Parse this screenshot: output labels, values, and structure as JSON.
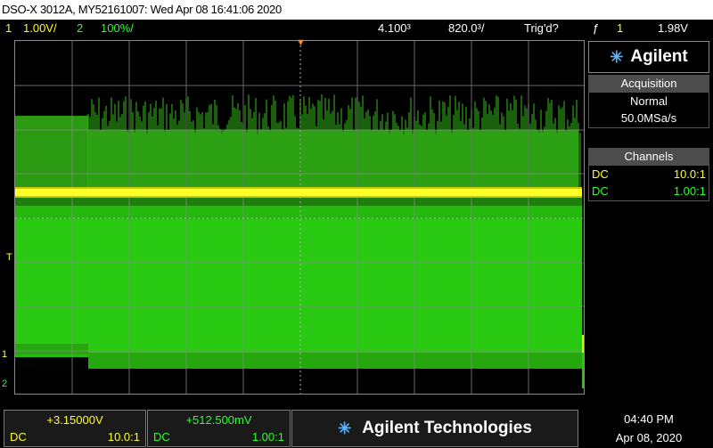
{
  "header": {
    "title": "DSO-X 3012A, MY52161007: Wed Apr 08 16:41:06 2020"
  },
  "status": {
    "ch1_num": "1",
    "ch1_scale": "1.00V/",
    "ch2_num": "2",
    "ch2_scale": "100%/",
    "timebase": "4.100³",
    "delay": "820.0³/",
    "trigger_state": "Trig'd?",
    "trigger_edge": "ƒ",
    "trigger_source": "1",
    "trigger_level": "1.98V"
  },
  "markers": {
    "trigger": "T",
    "ch1": "1",
    "ch2": "2"
  },
  "sidebar": {
    "brand": "Agilent",
    "acquisition_title": "Acquisition",
    "acq_mode": "Normal",
    "acq_rate": "50.0MSa/s",
    "channels_title": "Channels",
    "channels": [
      {
        "coupling": "DC",
        "probe": "10.0:1",
        "color": "#ffff2a"
      },
      {
        "coupling": "DC",
        "probe": "1.00:1",
        "color": "#2dff2d"
      }
    ]
  },
  "bottom": {
    "ch1_offset": "+3.15000V",
    "ch1_coupling": "DC",
    "ch1_probe": "10.0:1",
    "ch2_offset": "+512.500mV",
    "ch2_coupling": "DC",
    "ch2_probe": "1.00:1",
    "brand": "Agilent Technologies",
    "time": "04:40 PM",
    "date": "Apr 08, 2020"
  },
  "colors": {
    "ch1": "#ffff2a",
    "ch2": "#2dff2d",
    "grid": "#8a8a8a",
    "panel_header": "#4d4d4d"
  }
}
